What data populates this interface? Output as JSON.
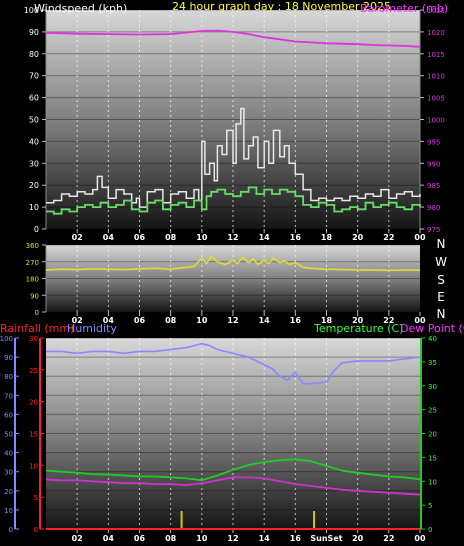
{
  "chart_data": [
    {
      "type": "line",
      "panel": "wind-pressure",
      "title": "24 hour graph day : 18 November 2025",
      "left_axis_label": "Windspeed (kph)",
      "right_axis_label": "Barometer (mb)",
      "x_ticks": [
        "02",
        "04",
        "06",
        "08",
        "10",
        "12",
        "14",
        "16",
        "18",
        "20",
        "22",
        "00"
      ],
      "left_ylim": [
        0,
        100
      ],
      "left_ticks": [
        0,
        10,
        20,
        30,
        40,
        50,
        60,
        70,
        80,
        90,
        100
      ],
      "right_ylim": [
        975,
        1025
      ],
      "right_ticks": [
        975,
        980,
        985,
        990,
        995,
        1000,
        1005,
        1010,
        1015,
        1020,
        1025
      ],
      "colors": {
        "gust": "#e8e8e8",
        "avg": "#66dd66",
        "pressure": "#dd33dd",
        "left_label": "#ffffff",
        "right_label": "#ff33ff",
        "title": "#ffff33"
      },
      "series": [
        {
          "key": "gust",
          "x": [
            0,
            0.5,
            1,
            1.5,
            2,
            2.5,
            3,
            3.3,
            3.6,
            4,
            4.5,
            5,
            5.5,
            5.8,
            6,
            6.5,
            7,
            7.5,
            8,
            8.5,
            9,
            9.5,
            9.8,
            10,
            10.2,
            10.5,
            10.8,
            11,
            11.3,
            11.6,
            12,
            12.2,
            12.5,
            12.7,
            13,
            13.3,
            13.6,
            14,
            14.3,
            14.6,
            15,
            15.3,
            15.6,
            16,
            16.5,
            17,
            17.5,
            18,
            18.5,
            19,
            19.5,
            20,
            20.5,
            21,
            21.5,
            22,
            22.5,
            23,
            23.5,
            24
          ],
          "y": [
            12,
            13,
            16,
            15,
            17,
            16,
            18,
            24,
            19,
            14,
            18,
            16,
            12,
            14,
            10,
            17,
            18,
            12,
            16,
            17,
            14,
            18,
            13,
            40,
            25,
            30,
            22,
            38,
            34,
            45,
            30,
            48,
            55,
            32,
            38,
            42,
            28,
            40,
            30,
            45,
            33,
            38,
            30,
            25,
            18,
            13,
            14,
            13,
            14,
            13,
            15,
            14,
            16,
            15,
            18,
            14,
            16,
            17,
            15,
            16
          ]
        },
        {
          "key": "avg",
          "x": [
            0,
            0.5,
            1,
            1.5,
            2,
            2.5,
            3,
            3.5,
            4,
            4.5,
            5,
            5.5,
            6,
            6.5,
            7,
            7.5,
            8,
            8.5,
            9,
            9.5,
            10,
            10.3,
            10.6,
            11,
            11.5,
            12,
            12.5,
            13,
            13.5,
            14,
            14.5,
            15,
            15.5,
            16,
            16.5,
            17,
            17.5,
            18,
            18.5,
            19,
            19.5,
            20,
            20.5,
            21,
            21.5,
            22,
            22.5,
            23,
            23.5,
            24
          ],
          "y": [
            8,
            7,
            9,
            8,
            10,
            11,
            10,
            12,
            10,
            11,
            13,
            9,
            8,
            12,
            13,
            9,
            11,
            12,
            10,
            13,
            9,
            15,
            17,
            18,
            16,
            15,
            17,
            19,
            16,
            18,
            16,
            18,
            17,
            15,
            11,
            10,
            12,
            11,
            8,
            9,
            10,
            9,
            12,
            10,
            11,
            12,
            10,
            9,
            11,
            10
          ]
        },
        {
          "key": "pressure",
          "x": [
            0,
            2,
            4,
            6,
            8,
            10,
            11,
            12,
            13,
            14,
            15,
            16,
            17,
            18,
            19,
            20,
            21,
            22,
            23,
            24
          ],
          "y": [
            1019.8,
            1019.6,
            1019.5,
            1019.4,
            1019.5,
            1020.2,
            1020.3,
            1020.0,
            1019.5,
            1018.8,
            1018.3,
            1017.8,
            1017.6,
            1017.4,
            1017.3,
            1017.2,
            1017.0,
            1016.9,
            1016.8,
            1016.6
          ]
        }
      ]
    },
    {
      "type": "line",
      "panel": "wind-direction",
      "x_ticks": [
        "02",
        "04",
        "06",
        "08",
        "10",
        "12",
        "14",
        "16",
        "18",
        "20",
        "22",
        "00"
      ],
      "ylim": [
        0,
        360
      ],
      "y_ticks": [
        0,
        90,
        180,
        270,
        360
      ],
      "compass": [
        "N",
        "W",
        "S",
        "E",
        "N"
      ],
      "colors": {
        "direction": "#dddd33",
        "compass": "#ffffff"
      },
      "series": [
        {
          "key": "direction",
          "x": [
            0,
            1,
            2,
            3,
            4,
            5,
            6,
            7,
            8,
            9,
            9.5,
            10,
            10.3,
            10.6,
            11,
            11.5,
            12,
            12.3,
            12.6,
            13,
            13.3,
            13.6,
            14,
            14.3,
            14.6,
            15,
            15.3,
            15.6,
            16,
            16.5,
            17,
            18,
            19,
            20,
            21,
            22,
            23,
            24
          ],
          "y": [
            225,
            230,
            228,
            232,
            230,
            228,
            232,
            235,
            230,
            240,
            245,
            290,
            260,
            300,
            270,
            255,
            280,
            260,
            295,
            265,
            285,
            255,
            280,
            260,
            290,
            265,
            275,
            255,
            265,
            240,
            235,
            230,
            228,
            226,
            225,
            224,
            225,
            225
          ]
        }
      ]
    },
    {
      "type": "line",
      "panel": "temp-humidity-rain",
      "labels": {
        "rain": "Rainfall (mm)",
        "humidity": "Humidity",
        "temp": "Temperature (C)",
        "dew": "Dew Point (C)"
      },
      "x_ticks": [
        "02",
        "04",
        "06",
        "08",
        "10",
        "12",
        "14",
        "16",
        "SunSet",
        "20",
        "22",
        "00"
      ],
      "humidity_ylim": [
        0,
        100
      ],
      "humidity_ticks": [
        0,
        10,
        20,
        30,
        40,
        50,
        60,
        70,
        80,
        90,
        100
      ],
      "rain_ylim": [
        0,
        30
      ],
      "rain_ticks": [
        0,
        5,
        10,
        15,
        20,
        25,
        30
      ],
      "temp_ylim": [
        0,
        40
      ],
      "temp_ticks": [
        0,
        5,
        10,
        15,
        20,
        25,
        30,
        35,
        40
      ],
      "events": [
        {
          "hour": 8.7,
          "color": "#cccc00"
        },
        {
          "hour": 17.2,
          "color": "#cccc00"
        }
      ],
      "colors": {
        "humidity": "#8888ff",
        "temp": "#22cc22",
        "dew": "#cc33cc",
        "rain": "#ff2222",
        "rain_label": "#ff2222",
        "humidity_label": "#8888ff",
        "temp_label": "#33ff33",
        "dew_label": "#ff33ff"
      },
      "series": [
        {
          "key": "humidity",
          "x": [
            0,
            1,
            2,
            3,
            4,
            5,
            6,
            7,
            8,
            9,
            10,
            10.5,
            11,
            12,
            13,
            14,
            14.5,
            15,
            15.5,
            16,
            16.5,
            17,
            18,
            18.5,
            19,
            20,
            21,
            22,
            23,
            24
          ],
          "y": [
            93,
            93,
            92,
            93,
            93,
            92,
            93,
            93,
            94,
            95,
            97,
            96,
            94,
            92,
            90,
            86,
            84,
            80,
            78,
            82,
            76,
            76,
            77,
            83,
            87,
            88,
            88,
            88,
            89,
            90
          ]
        },
        {
          "key": "temp",
          "x": [
            0,
            1,
            2,
            3,
            4,
            5,
            6,
            7,
            8,
            9,
            10,
            11,
            12,
            13,
            14,
            15,
            16,
            17,
            18,
            19,
            20,
            21,
            22,
            23,
            24
          ],
          "y": [
            12.2,
            12.0,
            11.8,
            11.5,
            11.4,
            11.2,
            11.0,
            11.0,
            10.8,
            10.6,
            10.2,
            11.2,
            12.4,
            13.4,
            14.0,
            14.4,
            14.6,
            14.2,
            13.2,
            12.2,
            11.8,
            11.4,
            11.0,
            10.8,
            10.4
          ]
        },
        {
          "key": "dew",
          "x": [
            0,
            1,
            2,
            3,
            4,
            5,
            6,
            7,
            8,
            9,
            10,
            11,
            12,
            13,
            14,
            15,
            16,
            17,
            18,
            19,
            20,
            21,
            22,
            23,
            24
          ],
          "y": [
            10.4,
            10.2,
            10.2,
            10.0,
            9.8,
            9.6,
            9.6,
            9.4,
            9.4,
            9.2,
            9.6,
            10.2,
            10.8,
            10.8,
            10.6,
            10.0,
            9.4,
            9.0,
            8.6,
            8.2,
            8.0,
            7.8,
            7.6,
            7.4,
            7.2
          ]
        },
        {
          "key": "rain",
          "x": [
            0,
            24
          ],
          "y": [
            0,
            0
          ]
        }
      ]
    }
  ]
}
